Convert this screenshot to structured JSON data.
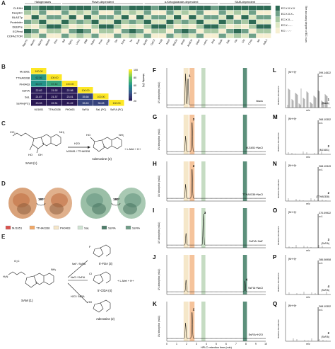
{
  "panel_a": {
    "letter": "A",
    "groups": [
      "Halogenases",
      "Flavin-dependent",
      "α-Ketoglutarate-dependent",
      "SAM-dependent"
    ],
    "row_labels": [
      "CLEAN",
      "DeepEC",
      "BLASTp",
      "ProteInfer",
      "DEEPre",
      "ECPred",
      "COFACTOR"
    ],
    "column_labels": [
      "Nap H1",
      "MarH1",
      "MarH2",
      "MarH3",
      "PtrH",
      "Bal",
      "TylH1",
      "VirX1",
      "PltM",
      "RebH",
      "PrnA",
      "CmlS",
      "Stu",
      "KtzQ",
      "Tsr",
      "KtzR",
      "SyrB2",
      "CytC3",
      "HctB",
      "AdeV",
      "WelO5",
      "BesD",
      "AmbO5",
      "DdaK",
      "LamC",
      "PtrB",
      "SadA",
      "SalL",
      "FlA",
      "ClA",
      "TTHA",
      "MJ",
      "SalL2"
    ],
    "legend_title": "The accuracy degree of EC num.",
    "legend_labels": [
      "EC:X.X.X.X",
      "EC:X.X.X.-",
      "EC:X.X.-.-",
      "EC:X.-.-.-",
      "EC:-.-.-.-"
    ]
  },
  "panel_b": {
    "letter": "B",
    "row_labels": [
      "MJ1651",
      "TTHA0338",
      "PH0463",
      "SsFIA",
      "SaL",
      "SsFlA(PC)"
    ],
    "col_labels": [
      "MJ1651",
      "TTHA0338",
      "PH0463",
      "SsFIA",
      "SaL (PC)",
      "SsFIA (PC)"
    ],
    "values": [
      [
        "100.00"
      ],
      [
        "62.56",
        "100.00"
      ],
      [
        "60.97",
        "67.42",
        "100.00"
      ],
      [
        "22.62",
        "21.92",
        "22.98",
        "100.00"
      ],
      [
        "21.87",
        "21.37",
        "23.01",
        "35.68",
        "100.00"
      ],
      [
        "20.93",
        "22.31",
        "21.22",
        "35.63",
        "35.08",
        "100.00"
      ]
    ],
    "scale_title": "Identity (%)",
    "scale_ticks": [
      "100",
      "80",
      "60",
      "40",
      "20"
    ]
  },
  "panel_c": {
    "letter": "C",
    "reactant": "SAM (1)",
    "enzymes": "MJ1651 / TTHA0338",
    "reagent": "H2O",
    "product": "Adenosine (2)",
    "byproduct": "+ L-Met + H+"
  },
  "panel_d": {
    "letter": "D",
    "angle1": "180°",
    "angle2": "180°",
    "legend": [
      "MJ1651",
      "TTHA0338",
      "PH0463",
      "SaL",
      "SsFlA",
      "SsFIA"
    ],
    "legend_colors": [
      "#d9534f",
      "#f0a868",
      "#f5e6c8",
      "#cfe3d3",
      "#4f7d6a",
      "#6f9c87"
    ]
  },
  "panel_e": {
    "letter": "E",
    "reactant": "SAM (1)",
    "arrows": [
      "NaF / SsFIA",
      "NaCl / SsFIA",
      "H2O / SsFIA"
    ],
    "products": [
      "5'-FDA (3)",
      "5'-ClDA (4)",
      "Adenosine (2)"
    ],
    "byproduct": "+ L-Met + H+"
  },
  "panel_hplc": {
    "letters": [
      "F",
      "G",
      "H",
      "I",
      "J",
      "K"
    ],
    "traces": [
      "Blank",
      "MJ1651+NaCl",
      "TTHA0338+NaCl",
      "SsFIA+NaF",
      "SsFIA+NaCl",
      "SsFIA+H2O"
    ],
    "peak_labels": [
      "1",
      "2",
      "2",
      "3",
      "4",
      "2"
    ],
    "y_label": "UV absorption (mAU)",
    "x_label": "HPLC retention time (min)",
    "x_ticks": [
      "0",
      "1",
      "2",
      "3",
      "4",
      "5",
      "6",
      "7",
      "8",
      "9",
      "10"
    ]
  },
  "panel_ms": {
    "letters": [
      "L",
      "M",
      "N",
      "O",
      "P",
      "Q"
    ],
    "mz_values": [
      "399.14522",
      "268.10352",
      "268.10349",
      "270.09922",
      "286.06958",
      "268.10352"
    ],
    "z_labels": [
      "z=1",
      "z=1",
      "z=1",
      "z=1",
      "z=1",
      "z=1"
    ],
    "ion": "[M+H]+",
    "compound_ids": [
      "1",
      "2",
      "2",
      "3",
      "4",
      "2"
    ],
    "sources": [
      "(Blank)",
      "(MJ1651)",
      "(TTHA0338)",
      "(SsFIA)",
      "(SsFIA)",
      "(SsFIA)"
    ],
    "y_label": "Relative Abundance",
    "x_label": "m/z"
  }
}
